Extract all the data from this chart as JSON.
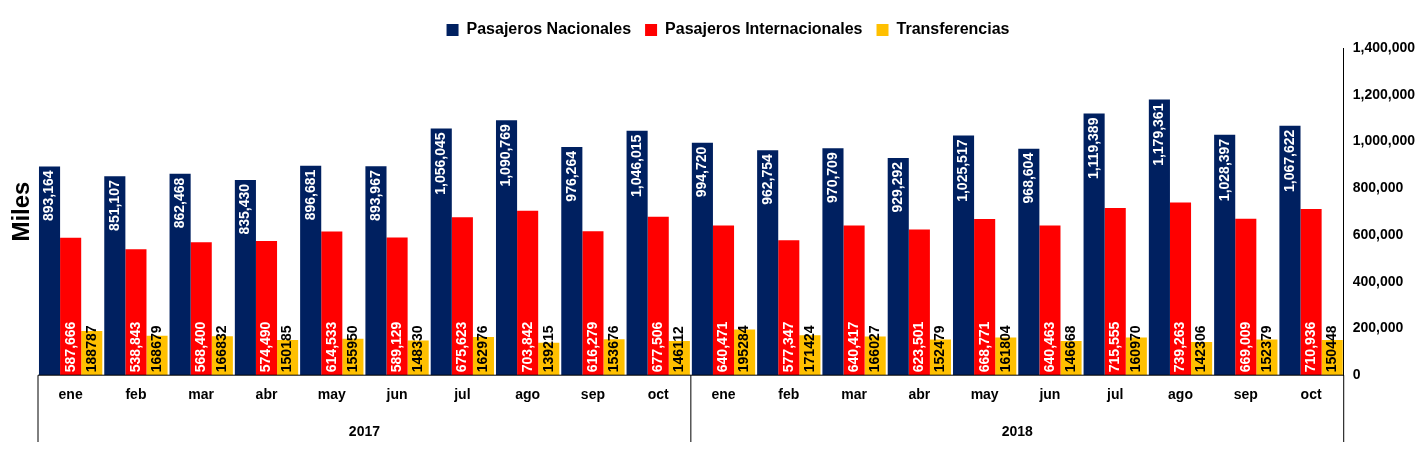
{
  "chart_data": {
    "type": "bar",
    "ylabel": "Miles",
    "categories": [
      "ene",
      "feb",
      "mar",
      "abr",
      "may",
      "jun",
      "jul",
      "ago",
      "sep",
      "oct",
      "ene",
      "feb",
      "mar",
      "abr",
      "may",
      "jun",
      "jul",
      "ago",
      "sep",
      "oct"
    ],
    "annotations": [
      "2017",
      "2018"
    ],
    "ylim": [
      0,
      1400000
    ],
    "yticks": [
      {
        "value": 0,
        "label": "0"
      },
      {
        "value": 200000,
        "label": "200,000"
      },
      {
        "value": 400000,
        "label": "400,000"
      },
      {
        "value": 600000,
        "label": "600,000"
      },
      {
        "value": 800000,
        "label": "800,000"
      },
      {
        "value": 1000000,
        "label": "1,000,000"
      },
      {
        "value": 1200000,
        "label": "1,200,000"
      },
      {
        "value": 1400000,
        "label": "1,400,000"
      }
    ],
    "grid": false,
    "legend": "top",
    "series": [
      {
        "name": "Pasajeros Nacionales",
        "color": "#002060",
        "values": [
          893164,
          851107,
          862468,
          835430,
          896681,
          893967,
          1056045,
          1090769,
          976264,
          1046015,
          994720,
          962754,
          970709,
          929292,
          1025517,
          968604,
          1119389,
          1179361,
          1028397,
          1067622
        ],
        "value_labels": [
          "893,164",
          "851,107",
          "862,468",
          "835,430",
          "896,681",
          "893,967",
          "1,056,045",
          "1,090,769",
          "976,264",
          "1,046,015",
          "994,720",
          "962,754",
          "970,709",
          "929,292",
          "1,025,517",
          "968,604",
          "1,119,389",
          "1,179,361",
          "1,028,397",
          "1,067,622"
        ]
      },
      {
        "name": "Pasajeros Internacionales",
        "color": "#ff0000",
        "values": [
          587666,
          538843,
          568400,
          574490,
          614533,
          589129,
          675623,
          703842,
          616279,
          677506,
          640471,
          577347,
          640417,
          623501,
          668771,
          640463,
          715555,
          739263,
          669009,
          710936
        ],
        "value_labels": [
          "587,666",
          "538,843",
          "568,400",
          "574,490",
          "614,533",
          "589,129",
          "675,623",
          "703,842",
          "616,279",
          "677,506",
          "640,471",
          "577,347",
          "640,417",
          "623,501",
          "668,771",
          "640,463",
          "715,555",
          "739,263",
          "669,009",
          "710,936"
        ]
      },
      {
        "name": "Transferencias",
        "color": "#ffc000",
        "values": [
          188787,
          168679,
          166832,
          150185,
          155950,
          148330,
          162976,
          139215,
          153676,
          146112,
          195284,
          171424,
          166027,
          152479,
          161804,
          146668,
          160970,
          142306,
          152379,
          150448
        ],
        "value_labels": [
          "188787",
          "168679",
          "166832",
          "150185",
          "155950",
          "148330",
          "162976",
          "139215",
          "153676",
          "146112",
          "195284",
          "171424",
          "166027",
          "152479",
          "161804",
          "146668",
          "160970",
          "142306",
          "152379",
          "150448"
        ]
      }
    ]
  }
}
